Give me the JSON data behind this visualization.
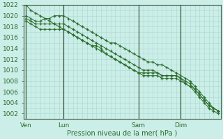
{
  "title": "",
  "xlabel": "Pression niveau de la mer( hPa )",
  "ylabel": "",
  "bg_color": "#cceee8",
  "grid_color": "#a8d8d0",
  "line_color": "#2d6e2d",
  "ylim": [
    1001,
    1022
  ],
  "ytick_min": 1002,
  "ytick_max": 1022,
  "ytick_step": 2,
  "tick_label_color": "#2d6e2d",
  "xtick_labels": [
    "Ven",
    "Lun",
    "Sam",
    "Dim"
  ],
  "xtick_positions": [
    0,
    8,
    24,
    33
  ],
  "vline_positions": [
    0,
    8,
    24,
    33
  ],
  "num_points": 42,
  "series1": [
    1022,
    1021,
    1020.5,
    1020,
    1019.5,
    1019,
    1018.5,
    1018,
    1017.5,
    1017,
    1016.5,
    1016,
    1015.5,
    1015,
    1014.5,
    1014.5,
    1014,
    1013,
    1012.5,
    1012,
    1011.5,
    1011,
    1010.5,
    1010,
    1009.5,
    1009.5,
    1009.5,
    1009.5,
    1009.5,
    1009,
    1009,
    1009,
    1009,
    1008.5,
    1007.5,
    1007,
    1006,
    1005,
    1004,
    1003,
    1002.5,
    1002
  ],
  "series2": [
    1020,
    1019.5,
    1019,
    1019,
    1019.5,
    1019.5,
    1020,
    1020,
    1020,
    1019.5,
    1019,
    1018.5,
    1018,
    1017.5,
    1017,
    1016.5,
    1016,
    1015.5,
    1015,
    1015,
    1014.5,
    1014,
    1013.5,
    1013,
    1012.5,
    1012,
    1011.5,
    1011.5,
    1011,
    1011,
    1010.5,
    1010,
    1009.5,
    1009,
    1008.5,
    1008,
    1007,
    1006,
    1005,
    1004,
    1003,
    1002.5
  ],
  "series3": [
    1019.5,
    1019,
    1018.5,
    1018.5,
    1018.5,
    1018.5,
    1018.5,
    1018.5,
    1018.5,
    1018,
    1017.5,
    1017,
    1016.5,
    1016,
    1015.5,
    1015,
    1014.5,
    1014,
    1013.5,
    1013,
    1012.5,
    1012,
    1011.5,
    1011,
    1010.5,
    1010,
    1010,
    1010,
    1009.5,
    1009,
    1009,
    1009,
    1009,
    1008.5,
    1008,
    1007.5,
    1006.5,
    1005.5,
    1004.5,
    1003.5,
    1003,
    1002.5
  ],
  "series4": [
    1019,
    1018.5,
    1018,
    1017.5,
    1017.5,
    1017.5,
    1017.5,
    1017.5,
    1017.5,
    1017,
    1016.5,
    1016,
    1015.5,
    1015,
    1014.5,
    1014,
    1013.5,
    1013,
    1012.5,
    1012,
    1011.5,
    1011,
    1010.5,
    1010,
    1009.5,
    1009,
    1009,
    1009,
    1009,
    1008.5,
    1008.5,
    1008.5,
    1008.5,
    1008,
    1007.5,
    1007,
    1006.5,
    1005.5,
    1004.5,
    1003.5,
    1003,
    1002.5
  ]
}
